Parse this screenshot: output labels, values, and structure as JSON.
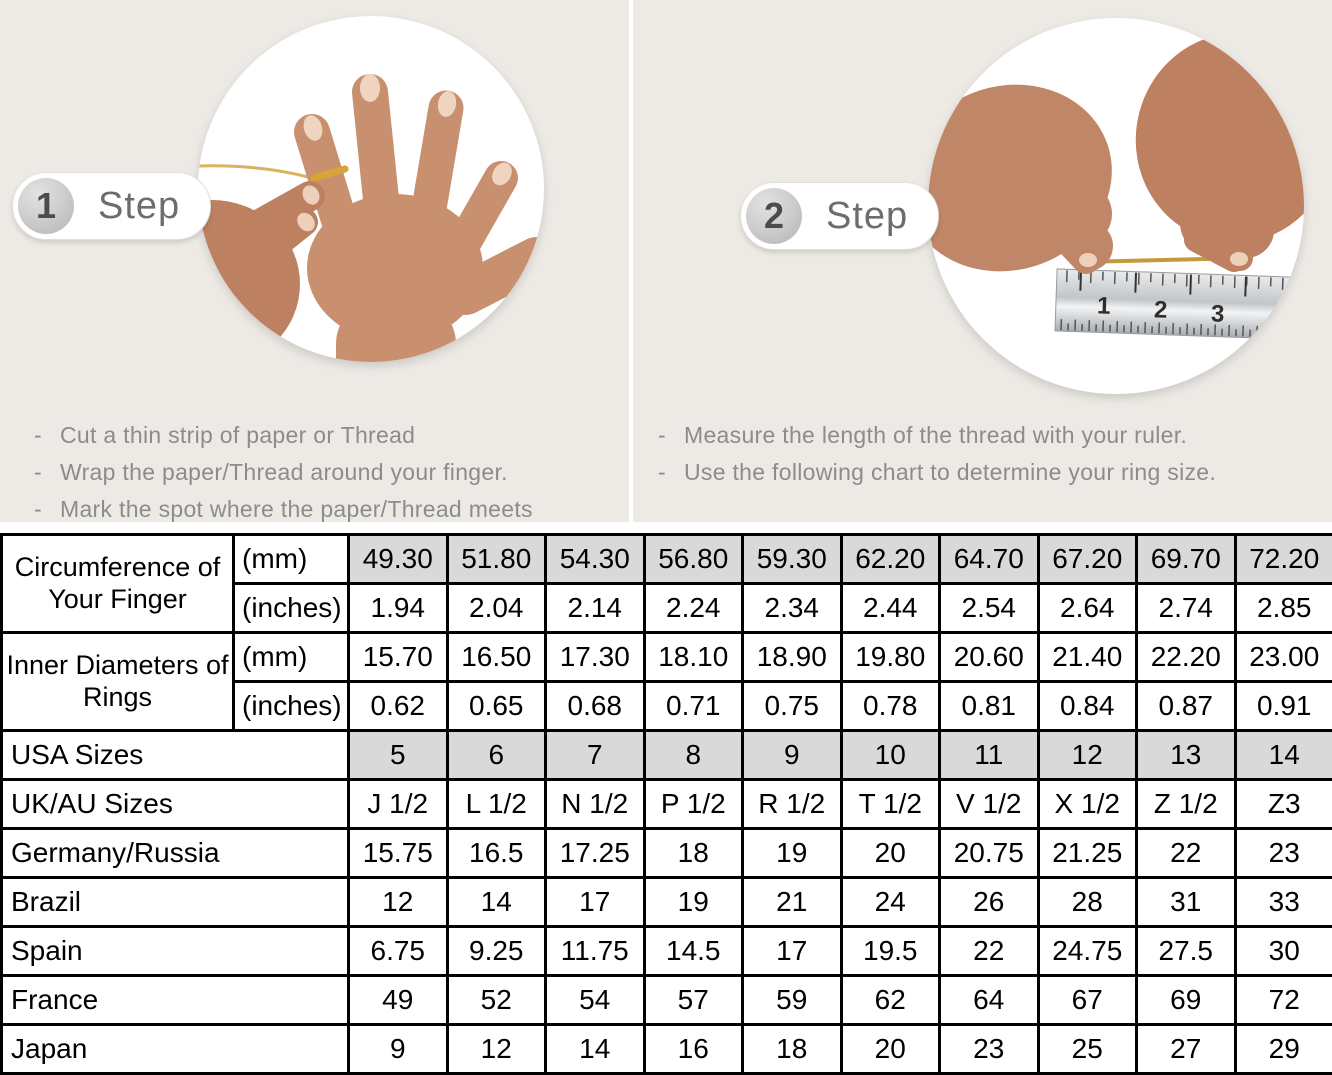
{
  "bullet_marker": "-",
  "steps": [
    {
      "number": "1",
      "label": "Step",
      "bullets": [
        "Cut a thin strip of paper or Thread",
        "Wrap the paper/Thread around your finger.",
        "Mark the spot where the paper/Thread meets"
      ]
    },
    {
      "number": "2",
      "label": "Step",
      "bullets": [
        "Measure the length of the thread with your ruler.",
        "Use the following chart to determine your ring size."
      ],
      "ruler_numbers": [
        "1",
        "2",
        "3"
      ]
    }
  ],
  "table": {
    "row_groups": [
      {
        "label": "Circumference of Your Finger",
        "rows": [
          {
            "unit": "(mm)",
            "shaded": true,
            "values": [
              "49.30",
              "51.80",
              "54.30",
              "56.80",
              "59.30",
              "62.20",
              "64.70",
              "67.20",
              "69.70",
              "72.20"
            ]
          },
          {
            "unit": "(inches)",
            "shaded": false,
            "values": [
              "1.94",
              "2.04",
              "2.14",
              "2.24",
              "2.34",
              "2.44",
              "2.54",
              "2.64",
              "2.74",
              "2.85"
            ]
          }
        ]
      },
      {
        "label": "Inner Diameters of Rings",
        "rows": [
          {
            "unit": "(mm)",
            "shaded": false,
            "values": [
              "15.70",
              "16.50",
              "17.30",
              "18.10",
              "18.90",
              "19.80",
              "20.60",
              "21.40",
              "22.20",
              "23.00"
            ]
          },
          {
            "unit": "(inches)",
            "shaded": false,
            "values": [
              "0.62",
              "0.65",
              "0.68",
              "0.71",
              "0.75",
              "0.78",
              "0.81",
              "0.84",
              "0.87",
              "0.91"
            ]
          }
        ]
      }
    ],
    "size_rows": [
      {
        "label": "USA Sizes",
        "shaded": true,
        "values": [
          "5",
          "6",
          "7",
          "8",
          "9",
          "10",
          "11",
          "12",
          "13",
          "14"
        ]
      },
      {
        "label": "UK/AU Sizes",
        "shaded": false,
        "values": [
          "J 1/2",
          "L 1/2",
          "N 1/2",
          "P 1/2",
          "R 1/2",
          "T 1/2",
          "V 1/2",
          "X 1/2",
          "Z 1/2",
          "Z3"
        ]
      },
      {
        "label": "Germany/Russia",
        "shaded": false,
        "values": [
          "15.75",
          "16.5",
          "17.25",
          "18",
          "19",
          "20",
          "20.75",
          "21.25",
          "22",
          "23"
        ]
      },
      {
        "label": "Brazil",
        "shaded": false,
        "values": [
          "12",
          "14",
          "17",
          "19",
          "21",
          "24",
          "26",
          "28",
          "31",
          "33"
        ]
      },
      {
        "label": "Spain",
        "shaded": false,
        "values": [
          "6.75",
          "9.25",
          "11.75",
          "14.5",
          "17",
          "19.5",
          "22",
          "24.75",
          "27.5",
          "30"
        ]
      },
      {
        "label": "France",
        "shaded": false,
        "values": [
          "49",
          "52",
          "54",
          "57",
          "59",
          "62",
          "64",
          "67",
          "69",
          "72"
        ]
      },
      {
        "label": "Japan",
        "shaded": false,
        "values": [
          "9",
          "12",
          "14",
          "16",
          "18",
          "20",
          "23",
          "25",
          "27",
          "29"
        ]
      }
    ]
  },
  "colors": {
    "panel_background": "#edeae5",
    "shaded_cell": "#d9d9d9",
    "table_border": "#000000",
    "bullet_text": "#8c8c8c",
    "step_text": "#6d6d6d",
    "gold_thread": "#d8a437",
    "skin_tone": "#c9906f"
  }
}
